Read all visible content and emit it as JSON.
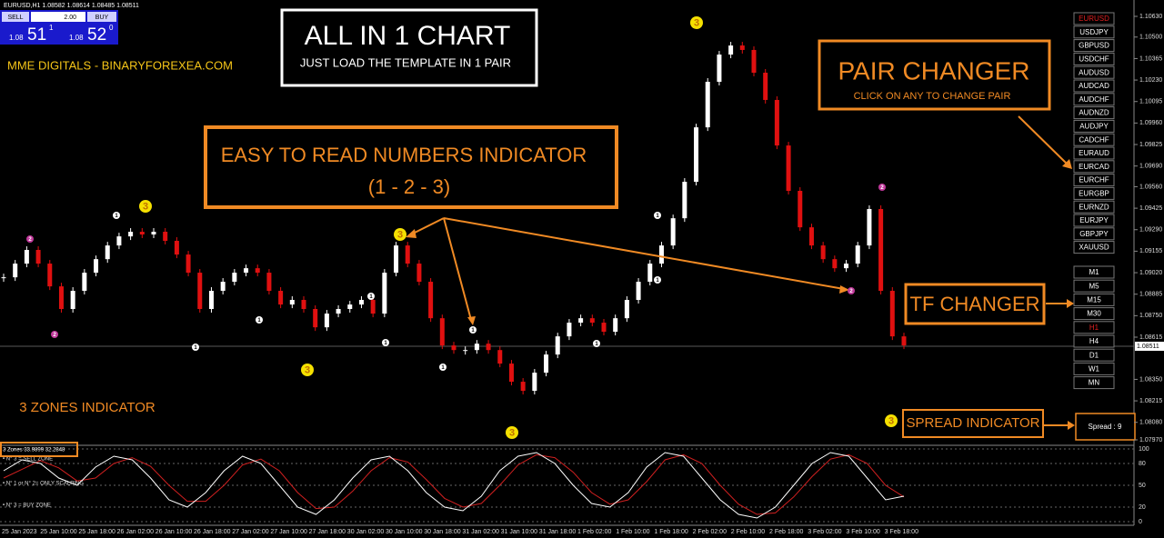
{
  "header": {
    "symbol": "EURUSD,H1 1.08582 1.08614 1.08485 1.08511",
    "sell": "SELL",
    "buy": "BUY",
    "lot": "2.00",
    "bid_prefix": "1.08",
    "bid_big": "51",
    "bid_small": "1",
    "ask_prefix": "1.08",
    "ask_big": "52",
    "ask_small": "0"
  },
  "brand": "MME DIGITALS - BINARYFOREXEA.COM",
  "promo": {
    "title": "ALL IN 1 CHART",
    "subtitle": "JUST LOAD THE TEMPLATE IN 1 PAIR"
  },
  "callouts": {
    "numbers_line1": "EASY TO READ NUMBERS INDICATOR",
    "numbers_line2": "(1 - 2 - 3)",
    "pair_title": "PAIR CHANGER",
    "pair_sub": "CLICK ON ANY TO CHANGE PAIR",
    "tf": "TF CHANGER",
    "spread": "SPREAD INDICATOR",
    "zones": "3 ZONES INDICATOR"
  },
  "pairs": [
    "EURUSD",
    "USDJPY",
    "GBPUSD",
    "USDCHF",
    "AUDUSD",
    "AUDCAD",
    "AUDCHF",
    "AUDNZD",
    "AUDJPY",
    "CADCHF",
    "EURAUD",
    "EURCAD",
    "EURCHF",
    "EURGBP",
    "EURNZD",
    "EURJPY",
    "GBPJPY",
    "XAUUSD"
  ],
  "timeframes": [
    "M1",
    "M5",
    "M15",
    "M30",
    "H1",
    "H4",
    "D1",
    "W1",
    "MN"
  ],
  "spread": "Spread : 9",
  "current_price": "1.08511",
  "price_ticks": [
    {
      "value": 1.1063,
      "label": "1.10630"
    },
    {
      "value": 1.105,
      "label": "1.10500"
    },
    {
      "value": 1.10365,
      "label": "1.10365"
    },
    {
      "value": 1.1023,
      "label": "1.10230"
    },
    {
      "value": 1.10095,
      "label": "1.10095"
    },
    {
      "value": 1.0996,
      "label": "1.09960"
    },
    {
      "value": 1.09825,
      "label": "1.09825"
    },
    {
      "value": 1.0969,
      "label": "1.09690"
    },
    {
      "value": 1.0956,
      "label": "1.09560"
    },
    {
      "value": 1.09425,
      "label": "1.09425"
    },
    {
      "value": 1.0929,
      "label": "1.09290"
    },
    {
      "value": 1.09155,
      "label": "1.09155"
    },
    {
      "value": 1.0902,
      "label": "1.09020"
    },
    {
      "value": 1.08885,
      "label": "1.08885"
    },
    {
      "value": 1.0875,
      "label": "1.08750"
    },
    {
      "value": 1.08615,
      "label": "1.08615"
    },
    {
      "value": 1.0835,
      "label": "1.08350"
    },
    {
      "value": 1.08215,
      "label": "1.08215"
    },
    {
      "value": 1.0808,
      "label": "1.08080"
    },
    {
      "value": 1.0797,
      "label": "1.07970"
    }
  ],
  "closes": [
    1.08991,
    1.09077,
    1.09163,
    1.09077,
    1.08934,
    1.08792,
    1.08906,
    1.0902,
    1.09105,
    1.09191,
    1.09248,
    1.09277,
    1.0926,
    1.09277,
    1.0922,
    1.09134,
    1.0902,
    1.08792,
    1.08906,
    1.08963,
    1.0902,
    1.09048,
    1.0902,
    1.08906,
    1.0882,
    1.08849,
    1.08792,
    1.08677,
    1.08763,
    1.08792,
    1.0882,
    1.08849,
    1.08763,
    1.0902,
    1.09191,
    1.09077,
    1.08963,
    1.08734,
    1.08563,
    1.08534,
    1.08534,
    1.08574,
    1.08534,
    1.08449,
    1.08335,
    1.08278,
    1.08392,
    1.08506,
    1.0862,
    1.08706,
    1.08734,
    1.08706,
    1.08649,
    1.08734,
    1.08849,
    1.08963,
    1.09077,
    1.09191,
    1.09362,
    1.09591,
    1.09933,
    1.10219,
    1.1039,
    1.10447,
    1.10419,
    1.10276,
    1.10105,
    1.09819,
    1.09534,
    1.09305,
    1.09191,
    1.09105,
    1.09048,
    1.09077,
    1.09191,
    1.0942,
    1.08906,
    1.0862,
    1.08563
  ],
  "markers": [
    "2",
    "2",
    "3",
    "1",
    "1",
    "3",
    "1",
    "1",
    "1",
    "3",
    "1",
    "1",
    "3",
    "1",
    "1",
    "1",
    "3",
    "2",
    "2",
    "3"
  ],
  "oscillator": {
    "label": "3 Zones 33.9899 32.2848",
    "notes": [
      "• N° 3 = SELL ZONE",
      "• N° 1 or N° 2= ONLY SCALPING",
      "• N° 3 = BUY ZONE"
    ],
    "levels": [
      100,
      80,
      50,
      20,
      0
    ],
    "fast": [
      70,
      85,
      80,
      60,
      50,
      75,
      90,
      85,
      60,
      30,
      20,
      40,
      70,
      90,
      80,
      50,
      20,
      10,
      30,
      60,
      85,
      90,
      70,
      40,
      20,
      15,
      35,
      70,
      90,
      95,
      80,
      50,
      25,
      20,
      40,
      75,
      95,
      90,
      60,
      30,
      10,
      5,
      20,
      50,
      80,
      95,
      90,
      60,
      30,
      35
    ],
    "slow": [
      60,
      72,
      84,
      74,
      56,
      60,
      80,
      88,
      76,
      50,
      28,
      28,
      50,
      78,
      86,
      70,
      40,
      18,
      20,
      42,
      70,
      88,
      82,
      58,
      32,
      20,
      25,
      50,
      78,
      92,
      88,
      68,
      40,
      24,
      30,
      55,
      85,
      92,
      80,
      50,
      24,
      10,
      12,
      34,
      62,
      86,
      92,
      80,
      50,
      34
    ]
  },
  "time_labels": [
    "25 Jan 2023",
    "25 Jan 10:00",
    "25 Jan 18:00",
    "26 Jan 02:00",
    "26 Jan 10:00",
    "26 Jan 18:00",
    "27 Jan 02:00",
    "27 Jan 10:00",
    "27 Jan 18:00",
    "30 Jan 02:00",
    "30 Jan 10:00",
    "30 Jan 18:00",
    "31 Jan 02:00",
    "31 Jan 10:00",
    "31 Jan 18:00",
    "1 Feb 02:00",
    "1 Feb 10:00",
    "1 Feb 18:00",
    "2 Feb 02:00",
    "2 Feb 10:00",
    "2 Feb 18:00",
    "3 Feb 02:00",
    "3 Feb 10:00",
    "3 Feb 18:00"
  ]
}
